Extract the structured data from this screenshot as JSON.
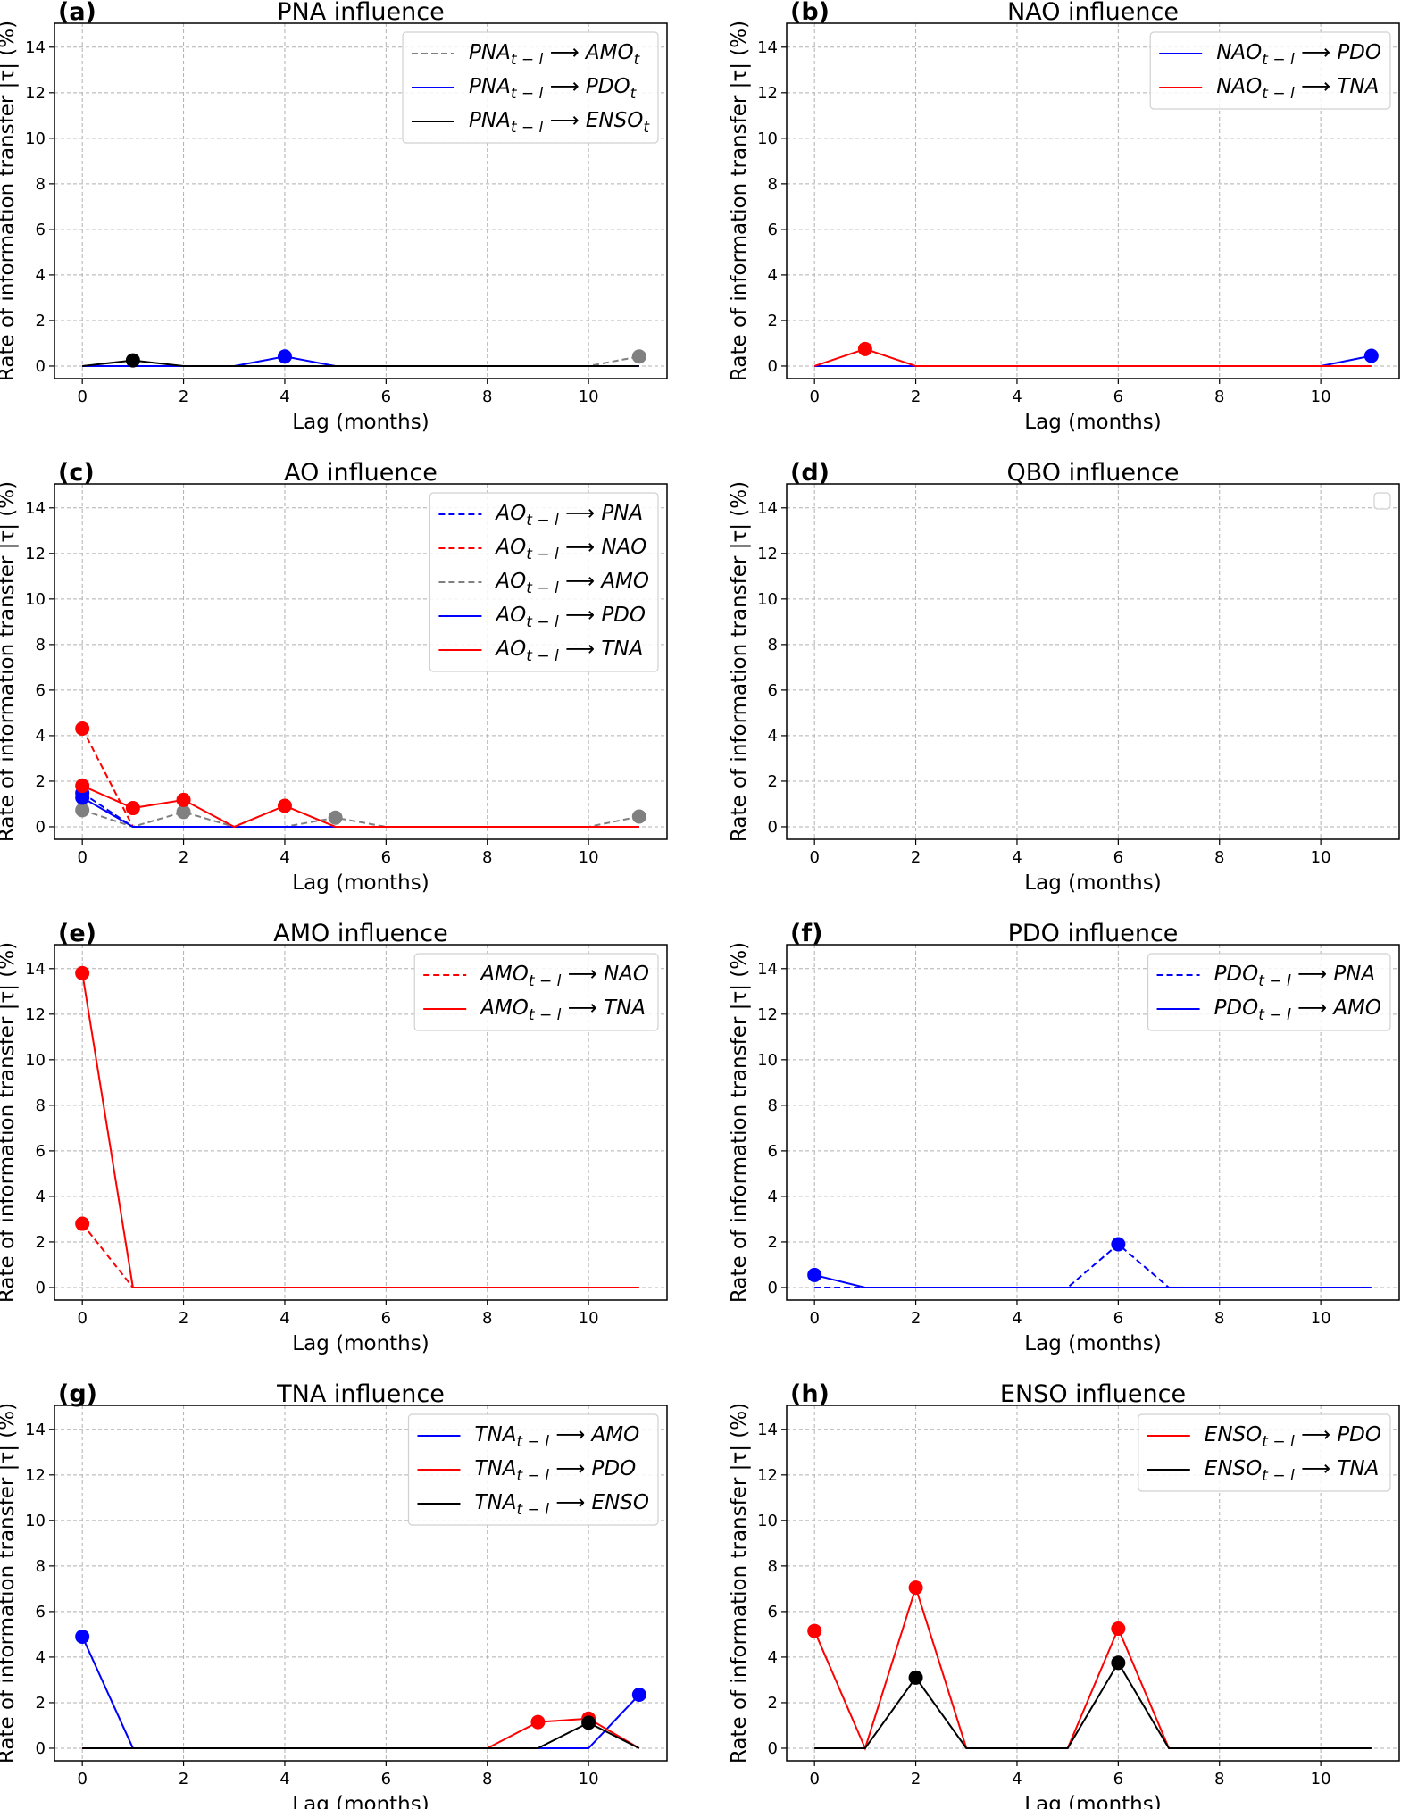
{
  "figure": {
    "ylabel": "Rate of information transfer |τ| (%)",
    "xlabel": "Lag (months)"
  },
  "chart_data": [
    {
      "panel": "(a)",
      "title": "PNA influence",
      "type": "line",
      "xlabel": "Lag (months)",
      "ylabel": "Rate of information transfer |τ| (%)",
      "xlim": [
        -0.55,
        11.55
      ],
      "ylim": [
        -0.55,
        15.05
      ],
      "xticks": [
        0,
        2,
        4,
        6,
        8,
        10
      ],
      "yticks": [
        0,
        2,
        4,
        6,
        8,
        10,
        12,
        14
      ],
      "grid": true,
      "legend": "upper-right",
      "x": [
        0,
        1,
        2,
        3,
        4,
        5,
        6,
        7,
        8,
        9,
        10,
        11
      ],
      "series": [
        {
          "name": "PNA_{t-l} ⟶ AMO_t",
          "src": "PNA",
          "dst": "AMO",
          "dst_sub": "t",
          "color": "#808080",
          "dashed": true,
          "values": [
            0,
            0,
            0,
            0,
            0,
            0,
            0,
            0,
            0,
            0,
            0,
            0.42
          ]
        },
        {
          "name": "PNA_{t-l} ⟶ PDO_t",
          "src": "PNA",
          "dst": "PDO",
          "dst_sub": "t",
          "color": "#0000ff",
          "dashed": false,
          "values": [
            0,
            0,
            0,
            0,
            0.42,
            0,
            0,
            0,
            0,
            0,
            0,
            0
          ]
        },
        {
          "name": "PNA_{t-l} ⟶ ENSO_t",
          "src": "PNA",
          "dst": "ENSO",
          "dst_sub": "t",
          "color": "#000000",
          "dashed": false,
          "values": [
            0,
            0.25,
            0,
            0,
            0,
            0,
            0,
            0,
            0,
            0,
            0,
            0
          ]
        }
      ]
    },
    {
      "panel": "(b)",
      "title": "NAO influence",
      "type": "line",
      "xlabel": "Lag (months)",
      "ylabel": "Rate of information transfer |τ| (%)",
      "xlim": [
        -0.55,
        11.55
      ],
      "ylim": [
        -0.55,
        15.05
      ],
      "xticks": [
        0,
        2,
        4,
        6,
        8,
        10
      ],
      "yticks": [
        0,
        2,
        4,
        6,
        8,
        10,
        12,
        14
      ],
      "grid": true,
      "legend": "upper-right",
      "x": [
        0,
        1,
        2,
        3,
        4,
        5,
        6,
        7,
        8,
        9,
        10,
        11
      ],
      "series": [
        {
          "name": "NAO_{t-l} ⟶ PDO",
          "src": "NAO",
          "dst": "PDO",
          "dst_sub": "",
          "color": "#0000ff",
          "dashed": false,
          "values": [
            0,
            0,
            0,
            0,
            0,
            0,
            0,
            0,
            0,
            0,
            0,
            0.45
          ]
        },
        {
          "name": "NAO_{t-l} ⟶ TNA",
          "src": "NAO",
          "dst": "TNA",
          "dst_sub": "",
          "color": "#ff0000",
          "dashed": false,
          "values": [
            0,
            0.75,
            0,
            0,
            0,
            0,
            0,
            0,
            0,
            0,
            0,
            0
          ]
        }
      ]
    },
    {
      "panel": "(c)",
      "title": "AO influence",
      "type": "line",
      "xlabel": "Lag (months)",
      "ylabel": "Rate of information transfer |τ| (%)",
      "xlim": [
        -0.55,
        11.55
      ],
      "ylim": [
        -0.55,
        15.05
      ],
      "xticks": [
        0,
        2,
        4,
        6,
        8,
        10
      ],
      "yticks": [
        0,
        2,
        4,
        6,
        8,
        10,
        12,
        14
      ],
      "grid": true,
      "legend": "upper-right",
      "x": [
        0,
        1,
        2,
        3,
        4,
        5,
        6,
        7,
        8,
        9,
        10,
        11
      ],
      "series": [
        {
          "name": "AO_{t-l} ⟶ PNA",
          "src": "AO",
          "dst": "PNA",
          "dst_sub": "",
          "color": "#0000ff",
          "dashed": true,
          "values": [
            1.48,
            0,
            0,
            0,
            0,
            0,
            0,
            0,
            0,
            0,
            0,
            0
          ]
        },
        {
          "name": "AO_{t-l} ⟶ NAO",
          "src": "AO",
          "dst": "NAO",
          "dst_sub": "",
          "color": "#ff0000",
          "dashed": true,
          "values": [
            4.31,
            0,
            0,
            0,
            0,
            0,
            0,
            0,
            0,
            0,
            0,
            0
          ]
        },
        {
          "name": "AO_{t-l} ⟶ AMO",
          "src": "AO",
          "dst": "AMO",
          "dst_sub": "",
          "color": "#808080",
          "dashed": true,
          "values": [
            0.73,
            0,
            0.65,
            0,
            0,
            0.4,
            0,
            0,
            0,
            0,
            0,
            0.45
          ]
        },
        {
          "name": "AO_{t-l} ⟶ PDO",
          "src": "AO",
          "dst": "PDO",
          "dst_sub": "",
          "color": "#0000ff",
          "dashed": false,
          "values": [
            1.28,
            0,
            0,
            0,
            0,
            0,
            0,
            0,
            0,
            0,
            0,
            0
          ]
        },
        {
          "name": "AO_{t-l} ⟶ TNA",
          "src": "AO",
          "dst": "TNA",
          "dst_sub": "",
          "color": "#ff0000",
          "dashed": false,
          "values": [
            1.8,
            0.82,
            1.18,
            0,
            0.92,
            0,
            0,
            0,
            0,
            0,
            0,
            0
          ]
        }
      ]
    },
    {
      "panel": "(d)",
      "title": "QBO influence",
      "type": "line",
      "xlabel": "Lag (months)",
      "ylabel": "Rate of information transfer |τ| (%)",
      "xlim": [
        -0.55,
        11.55
      ],
      "ylim": [
        -0.55,
        15.05
      ],
      "xticks": [
        0,
        2,
        4,
        6,
        8,
        10
      ],
      "yticks": [
        0,
        2,
        4,
        6,
        8,
        10,
        12,
        14
      ],
      "grid": true,
      "legend": "upper-right",
      "x": [
        0,
        1,
        2,
        3,
        4,
        5,
        6,
        7,
        8,
        9,
        10,
        11
      ],
      "series": []
    },
    {
      "panel": "(e)",
      "title": "AMO influence",
      "type": "line",
      "xlabel": "Lag (months)",
      "ylabel": "Rate of information transfer |τ| (%)",
      "xlim": [
        -0.55,
        11.55
      ],
      "ylim": [
        -0.55,
        15.05
      ],
      "xticks": [
        0,
        2,
        4,
        6,
        8,
        10
      ],
      "yticks": [
        0,
        2,
        4,
        6,
        8,
        10,
        12,
        14
      ],
      "grid": true,
      "legend": "upper-right",
      "x": [
        0,
        1,
        2,
        3,
        4,
        5,
        6,
        7,
        8,
        9,
        10,
        11
      ],
      "series": [
        {
          "name": "AMO_{t-l} ⟶ NAO",
          "src": "AMO",
          "dst": "NAO",
          "dst_sub": "",
          "color": "#ff0000",
          "dashed": true,
          "values": [
            2.8,
            0,
            0,
            0,
            0,
            0,
            0,
            0,
            0,
            0,
            0,
            0
          ]
        },
        {
          "name": "AMO_{t-l} ⟶ TNA",
          "src": "AMO",
          "dst": "TNA",
          "dst_sub": "",
          "color": "#ff0000",
          "dashed": false,
          "values": [
            13.8,
            0,
            0,
            0,
            0,
            0,
            0,
            0,
            0,
            0,
            0,
            0
          ]
        }
      ]
    },
    {
      "panel": "(f)",
      "title": "PDO influence",
      "type": "line",
      "xlabel": "Lag (months)",
      "ylabel": "Rate of information transfer |τ| (%)",
      "xlim": [
        -0.55,
        11.55
      ],
      "ylim": [
        -0.55,
        15.05
      ],
      "xticks": [
        0,
        2,
        4,
        6,
        8,
        10
      ],
      "yticks": [
        0,
        2,
        4,
        6,
        8,
        10,
        12,
        14
      ],
      "grid": true,
      "legend": "upper-right",
      "x": [
        0,
        1,
        2,
        3,
        4,
        5,
        6,
        7,
        8,
        9,
        10,
        11
      ],
      "series": [
        {
          "name": "PDO_{t-l} ⟶ PNA",
          "src": "PDO",
          "dst": "PNA",
          "dst_sub": "",
          "color": "#0000ff",
          "dashed": true,
          "values": [
            0,
            0,
            0,
            0,
            0,
            0,
            1.9,
            0,
            0,
            0,
            0,
            0
          ]
        },
        {
          "name": "PDO_{t-l} ⟶ AMO",
          "src": "PDO",
          "dst": "AMO",
          "dst_sub": "",
          "color": "#0000ff",
          "dashed": false,
          "values": [
            0.55,
            0,
            0,
            0,
            0,
            0,
            0,
            0,
            0,
            0,
            0,
            0
          ]
        }
      ]
    },
    {
      "panel": "(g)",
      "title": "TNA influence",
      "type": "line",
      "xlabel": "Lag (months)",
      "ylabel": "Rate of information transfer |τ| (%)",
      "xlim": [
        -0.55,
        11.55
      ],
      "ylim": [
        -0.55,
        15.05
      ],
      "xticks": [
        0,
        2,
        4,
        6,
        8,
        10
      ],
      "yticks": [
        0,
        2,
        4,
        6,
        8,
        10,
        12,
        14
      ],
      "grid": true,
      "legend": "upper-right",
      "x": [
        0,
        1,
        2,
        3,
        4,
        5,
        6,
        7,
        8,
        9,
        10,
        11
      ],
      "series": [
        {
          "name": "TNA_{t-l} ⟶ AMO",
          "src": "TNA",
          "dst": "AMO",
          "dst_sub": "",
          "color": "#0000ff",
          "dashed": false,
          "values": [
            4.9,
            0,
            0,
            0,
            0,
            0,
            0,
            0,
            0,
            0,
            0,
            2.35
          ]
        },
        {
          "name": "TNA_{t-l} ⟶ PDO",
          "src": "TNA",
          "dst": "PDO",
          "dst_sub": "",
          "color": "#ff0000",
          "dashed": false,
          "values": [
            0,
            0,
            0,
            0,
            0,
            0,
            0,
            0,
            0,
            1.15,
            1.3,
            0
          ]
        },
        {
          "name": "TNA_{t-l} ⟶ ENSO",
          "src": "TNA",
          "dst": "ENSO",
          "dst_sub": "",
          "color": "#000000",
          "dashed": false,
          "values": [
            0,
            0,
            0,
            0,
            0,
            0,
            0,
            0,
            0,
            0,
            1.12,
            0
          ]
        }
      ]
    },
    {
      "panel": "(h)",
      "title": "ENSO influence",
      "type": "line",
      "xlabel": "Lag (months)",
      "ylabel": "Rate of information transfer |τ| (%)",
      "xlim": [
        -0.55,
        11.55
      ],
      "ylim": [
        -0.55,
        15.05
      ],
      "xticks": [
        0,
        2,
        4,
        6,
        8,
        10
      ],
      "yticks": [
        0,
        2,
        4,
        6,
        8,
        10,
        12,
        14
      ],
      "grid": true,
      "legend": "upper-right",
      "x": [
        0,
        1,
        2,
        3,
        4,
        5,
        6,
        7,
        8,
        9,
        10,
        11
      ],
      "series": [
        {
          "name": "ENSO_{t-l} ⟶ PDO",
          "src": "ENSO",
          "dst": "PDO",
          "dst_sub": "",
          "color": "#ff0000",
          "dashed": false,
          "values": [
            5.15,
            0,
            7.05,
            0,
            0,
            0,
            5.25,
            0,
            0,
            0,
            0,
            0
          ]
        },
        {
          "name": "ENSO_{t-l} ⟶ TNA",
          "src": "ENSO",
          "dst": "TNA",
          "dst_sub": "",
          "color": "#000000",
          "dashed": false,
          "values": [
            0,
            0,
            3.1,
            0,
            0,
            0,
            3.75,
            0,
            0,
            0,
            0,
            0
          ]
        }
      ]
    }
  ]
}
